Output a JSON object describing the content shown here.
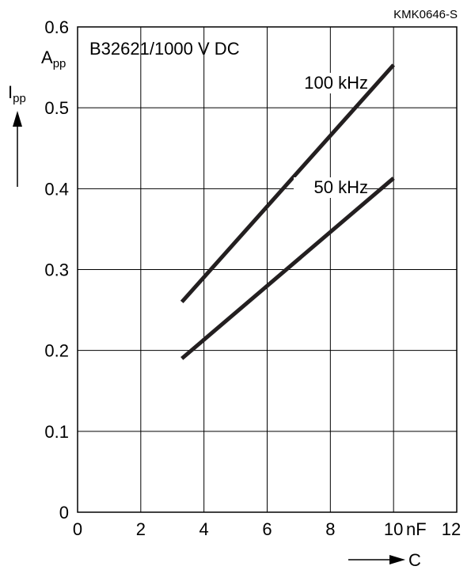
{
  "figure_code": "KMK0646-S",
  "chart_data": {
    "type": "line",
    "annotation": "B32621/1000 V DC",
    "x_axis": {
      "symbol": "C",
      "unit": "nF",
      "range": [
        0,
        12
      ],
      "ticks": [
        0,
        2,
        4,
        6,
        8,
        10,
        12
      ],
      "tick_labels": [
        "0",
        "2",
        "4",
        "6",
        "8",
        "10",
        "12"
      ]
    },
    "y_axis": {
      "symbol_base": "I",
      "symbol_sub": "pp",
      "unit_base": "A",
      "unit_sub": "pp",
      "range": [
        0,
        0.6
      ],
      "ticks": [
        0,
        0.1,
        0.2,
        0.3,
        0.4,
        0.5,
        0.6
      ],
      "tick_labels": [
        "0",
        "0.1",
        "0.2",
        "0.3",
        "0.4",
        "0.5",
        "0.6"
      ]
    },
    "grid": true,
    "series": [
      {
        "name": "100 kHz",
        "x": [
          3.3,
          10.0
        ],
        "y": [
          0.26,
          0.553
        ]
      },
      {
        "name": "50 kHz",
        "x": [
          3.3,
          10.0
        ],
        "y": [
          0.19,
          0.413
        ]
      }
    ]
  }
}
